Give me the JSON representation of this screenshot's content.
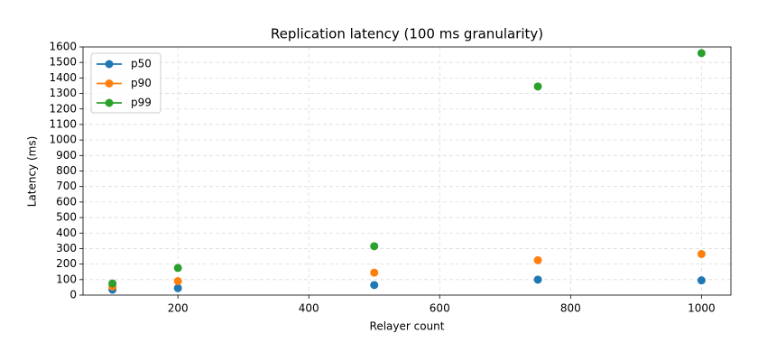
{
  "chart_data": {
    "type": "scatter",
    "title": "Replication latency (100 ms granularity)",
    "x_label": "Relayer count",
    "y_label": "Latency (ms)",
    "x": [
      100,
      200,
      500,
      750,
      1000
    ],
    "series": [
      {
        "name": "p50",
        "color": "#1f77b4",
        "values": [
          35,
          45,
          65,
          100,
          95
        ]
      },
      {
        "name": "p90",
        "color": "#ff7f0e",
        "values": [
          55,
          90,
          145,
          225,
          265
        ]
      },
      {
        "name": "p99",
        "color": "#2ca02c",
        "values": [
          75,
          175,
          315,
          1345,
          1560
        ]
      }
    ],
    "xlim": [
      55,
      1045
    ],
    "ylim": [
      0,
      1600
    ],
    "xticks": [
      200,
      400,
      600,
      800,
      1000
    ],
    "yticks": [
      0,
      100,
      200,
      300,
      400,
      500,
      600,
      700,
      800,
      900,
      1000,
      1100,
      1200,
      1300,
      1400,
      1500,
      1600
    ],
    "grid": true,
    "legend": "upper-left"
  }
}
